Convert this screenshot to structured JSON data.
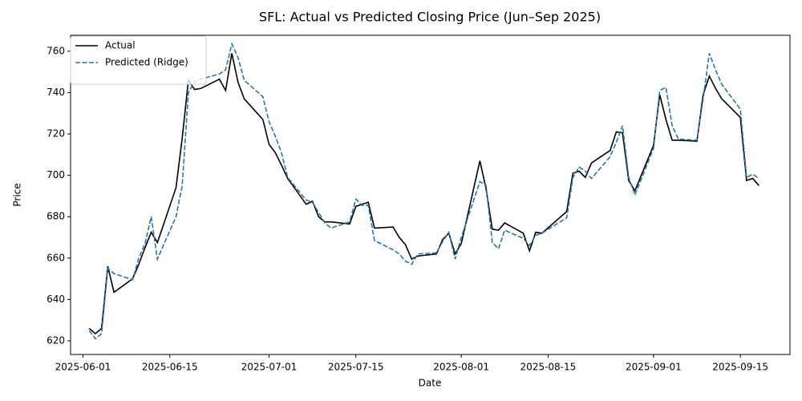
{
  "chart_data": {
    "type": "line",
    "title": "SFL: Actual vs Predicted Closing Price (Jun–Sep 2025)",
    "xlabel": "Date",
    "ylabel": "Price",
    "x": [
      "2025-06-02",
      "2025-06-03",
      "2025-06-04",
      "2025-06-05",
      "2025-06-06",
      "2025-06-09",
      "2025-06-10",
      "2025-06-11",
      "2025-06-12",
      "2025-06-13",
      "2025-06-16",
      "2025-06-17",
      "2025-06-18",
      "2025-06-19",
      "2025-06-20",
      "2025-06-23",
      "2025-06-24",
      "2025-06-25",
      "2025-06-26",
      "2025-06-27",
      "2025-06-30",
      "2025-07-01",
      "2025-07-02",
      "2025-07-03",
      "2025-07-04",
      "2025-07-07",
      "2025-07-08",
      "2025-07-09",
      "2025-07-10",
      "2025-07-11",
      "2025-07-14",
      "2025-07-15",
      "2025-07-16",
      "2025-07-17",
      "2025-07-18",
      "2025-07-21",
      "2025-07-22",
      "2025-07-23",
      "2025-07-24",
      "2025-07-25",
      "2025-07-28",
      "2025-07-29",
      "2025-07-30",
      "2025-07-31",
      "2025-08-01",
      "2025-08-04",
      "2025-08-05",
      "2025-08-06",
      "2025-08-07",
      "2025-08-08",
      "2025-08-11",
      "2025-08-12",
      "2025-08-13",
      "2025-08-14",
      "2025-08-18",
      "2025-08-19",
      "2025-08-20",
      "2025-08-21",
      "2025-08-22",
      "2025-08-25",
      "2025-08-26",
      "2025-08-27",
      "2025-08-28",
      "2025-08-29",
      "2025-09-01",
      "2025-09-02",
      "2025-09-03",
      "2025-09-04",
      "2025-09-05",
      "2025-09-08",
      "2025-09-09",
      "2025-09-10",
      "2025-09-11",
      "2025-09-12",
      "2025-09-15",
      "2025-09-16",
      "2025-09-17",
      "2025-09-18"
    ],
    "series": [
      {
        "name": "Actual",
        "color": "#000000",
        "linestyle": "solid",
        "values": [
          626,
          623.5,
          626,
          656,
          643.5,
          650,
          657,
          665,
          672.5,
          667.5,
          694,
          718,
          746,
          741.5,
          742,
          746.5,
          741,
          759,
          745,
          737,
          727,
          715,
          711,
          705,
          698.5,
          686,
          687.5,
          680,
          677.5,
          677.5,
          676.5,
          685,
          686,
          687,
          674.5,
          675,
          670,
          666.5,
          659.5,
          661,
          662,
          669,
          672,
          662,
          667,
          707,
          693.5,
          674,
          673.5,
          677,
          672,
          663.5,
          672.5,
          672,
          682.5,
          701,
          702,
          699,
          706,
          712,
          721,
          720.5,
          697.5,
          692.5,
          714.5,
          739,
          727,
          717,
          717,
          716.5,
          739,
          748,
          742,
          737,
          728,
          697.5,
          698.5,
          695
        ]
      },
      {
        "name": "Predicted (Ridge)",
        "color": "#1f77b4",
        "linestyle": "dashed",
        "values": [
          625,
          621,
          623.5,
          655,
          652.5,
          649.5,
          660,
          667,
          680,
          659.5,
          680,
          695,
          740,
          745.5,
          746.5,
          749,
          751,
          763.5,
          757,
          746,
          738,
          726,
          719,
          711,
          699,
          688,
          687,
          682,
          677,
          674.5,
          677.5,
          688.5,
          685.5,
          685.5,
          668.5,
          664,
          662,
          658.5,
          657,
          662,
          662.5,
          668,
          672.5,
          659.5,
          670,
          697,
          695,
          667.5,
          664.5,
          673.5,
          669.5,
          666,
          671,
          672,
          679.5,
          699,
          704,
          702,
          698.5,
          709,
          716,
          724,
          699,
          690.5,
          713,
          741,
          742.5,
          724,
          717.5,
          717,
          737,
          759,
          751,
          744,
          732,
          699,
          700.5,
          698.5
        ]
      }
    ],
    "xlim": [
      "2025-05-30",
      "2025-09-23"
    ],
    "xticks": [
      "2025-06-01",
      "2025-06-15",
      "2025-07-01",
      "2025-07-15",
      "2025-08-01",
      "2025-08-15",
      "2025-09-01",
      "2025-09-15"
    ],
    "ylim": [
      613.4,
      767.7
    ],
    "yticks": [
      620,
      640,
      660,
      680,
      700,
      720,
      740,
      760
    ],
    "legend": "upper left"
  }
}
